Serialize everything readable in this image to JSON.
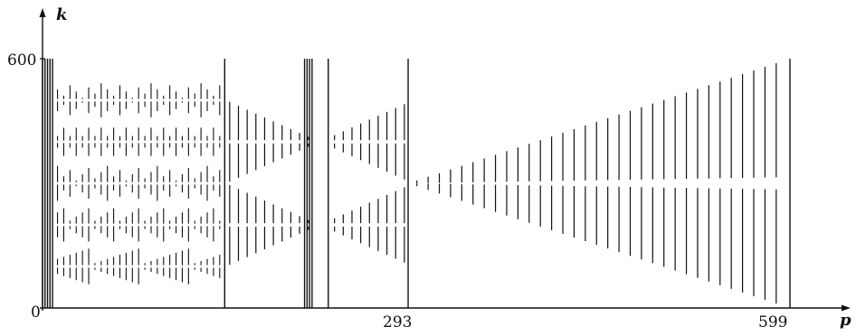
{
  "chart_data": {
    "type": "scatter",
    "xlabel": "p",
    "ylabel": "k",
    "x_ticks": [
      "293",
      "599"
    ],
    "y_ticks": [
      "0",
      "600"
    ],
    "origin_label": "0",
    "xlim": [
      0,
      599
    ],
    "ylim": [
      0,
      600
    ],
    "grid": false,
    "legend": "none",
    "mark_color": "#111111",
    "series": [
      {
        "description_note": "",
        "marks": "vertical-segments"
      }
    ],
    "segments_p_k": [
      [
        0,
        0,
        600
      ],
      [
        2,
        0,
        600
      ],
      [
        4,
        0,
        600
      ],
      [
        6,
        0,
        600
      ],
      [
        8,
        0,
        600
      ],
      [
        146,
        0,
        600
      ],
      [
        229,
        0,
        600
      ],
      [
        293,
        0,
        600
      ],
      [
        599,
        0,
        600
      ],
      [
        210,
        0,
        600
      ],
      [
        212,
        0,
        600
      ],
      [
        214,
        0,
        600
      ],
      [
        216,
        0,
        600
      ]
    ]
  }
}
